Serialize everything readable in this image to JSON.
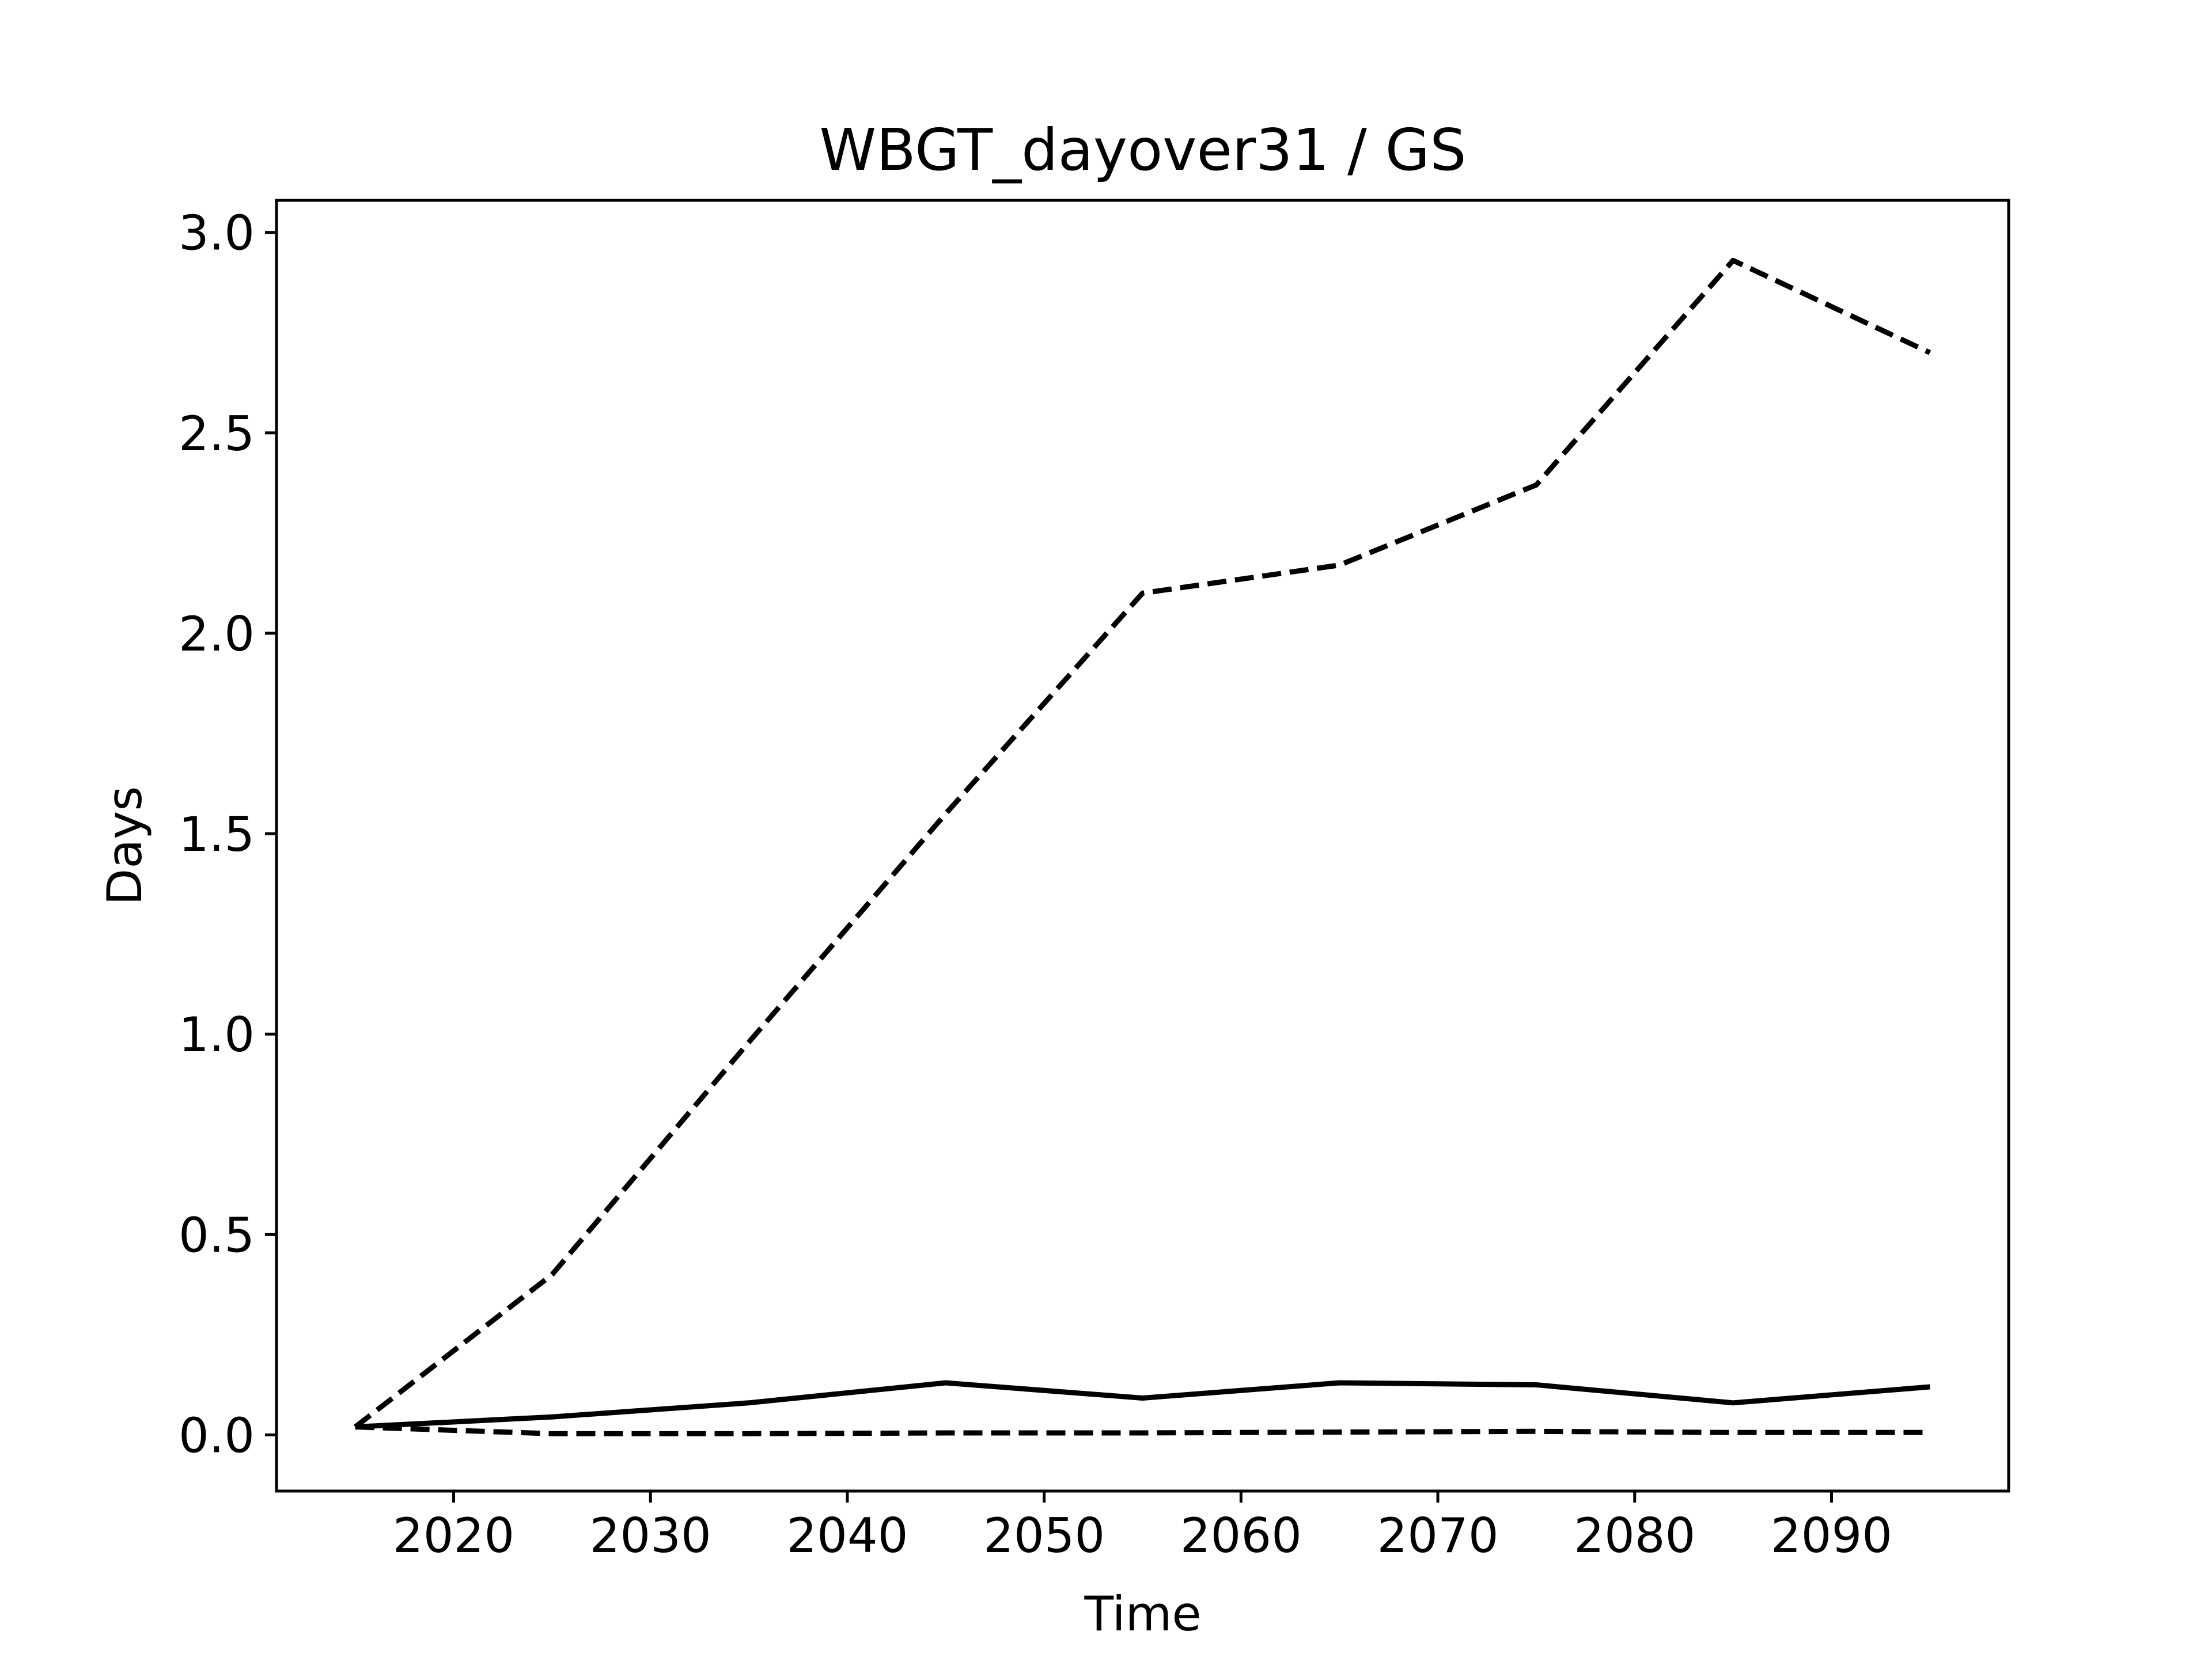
{
  "chart_data": {
    "type": "line",
    "title": "WBGT_dayover31 / GS",
    "xlabel": "Time",
    "ylabel": "Days",
    "xlim": [
      2011,
      2099
    ],
    "ylim": [
      -0.14,
      3.08
    ],
    "xticks": [
      2020,
      2030,
      2040,
      2050,
      2060,
      2070,
      2080,
      2090
    ],
    "yticks": [
      0.0,
      0.5,
      1.0,
      1.5,
      2.0,
      2.5,
      3.0
    ],
    "xtick_labels": [
      "2020",
      "2030",
      "2040",
      "2050",
      "2060",
      "2070",
      "2080",
      "2090"
    ],
    "ytick_labels": [
      "0.0",
      "0.5",
      "1.0",
      "1.5",
      "2.0",
      "2.5",
      "3.0"
    ],
    "grid": false,
    "legend": "none",
    "x": [
      2015,
      2025,
      2035,
      2045,
      2055,
      2065,
      2075,
      2085,
      2095
    ],
    "series": [
      {
        "style": "dashed",
        "color": "#000000",
        "values": [
          0.02,
          0.4,
          0.98,
          1.55,
          2.1,
          2.17,
          2.37,
          2.93,
          2.7
        ]
      },
      {
        "style": "solid",
        "color": "#000000",
        "values": [
          0.02,
          0.045,
          0.08,
          0.13,
          0.092,
          0.13,
          0.125,
          0.08,
          0.12
        ]
      },
      {
        "style": "dashed",
        "color": "#000000",
        "values": [
          0.02,
          0.003,
          0.003,
          0.005,
          0.005,
          0.007,
          0.009,
          0.006,
          0.006
        ]
      }
    ]
  }
}
